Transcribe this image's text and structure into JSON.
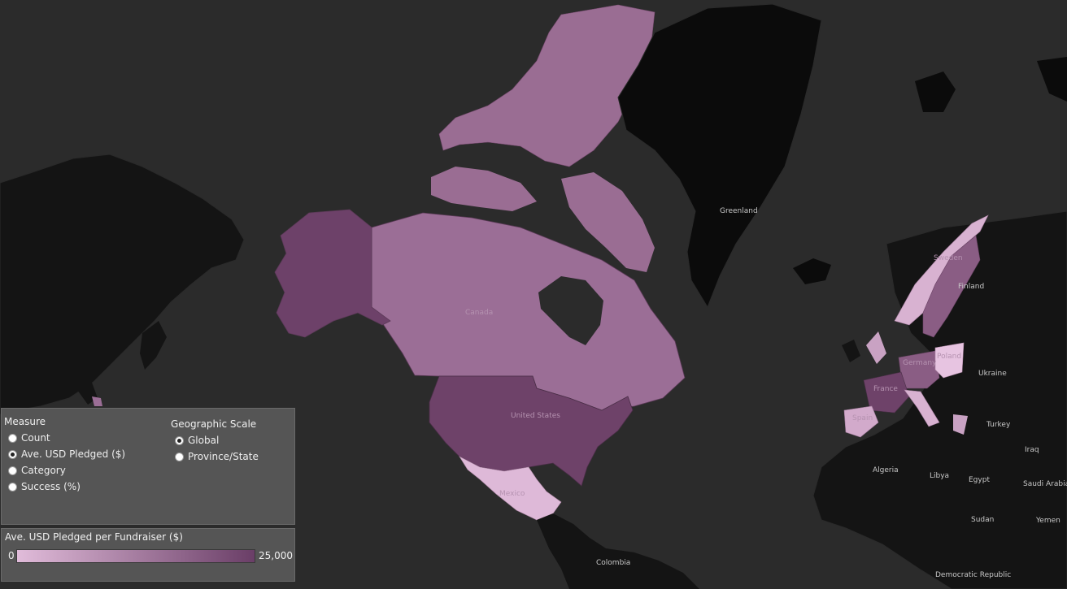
{
  "map": {
    "labels": {
      "greenland": "Greenland",
      "canada": "Canada",
      "united_states": "United States",
      "mexico": "Mexico",
      "colombia": "Colombia",
      "sweden": "Sweden",
      "finland": "Finland",
      "germany": "Germany",
      "poland": "Poland",
      "ukraine": "Ukraine",
      "france": "France",
      "spain": "Spain",
      "turkey": "Turkey",
      "iraq": "Iraq",
      "algeria": "Algeria",
      "libya": "Libya",
      "egypt": "Egypt",
      "saudi_arabia": "Saudi Arabia",
      "sudan": "Sudan",
      "yemen": "Yemen",
      "drc": "Democratic Republic"
    },
    "colors": {
      "ocean": "#2b2b2b",
      "land_no_data": "#111111",
      "scale_low": "#e1bcda",
      "scale_high": "#6a3e67"
    }
  },
  "controls": {
    "measure": {
      "title": "Measure",
      "options": [
        {
          "label": "Count",
          "selected": false
        },
        {
          "label": "Ave. USD Pledged ($)",
          "selected": true
        },
        {
          "label": "Category",
          "selected": false
        },
        {
          "label": "Success (%)",
          "selected": false
        }
      ]
    },
    "geo_scale": {
      "title": "Geographic Scale",
      "options": [
        {
          "label": "Global",
          "selected": true
        },
        {
          "label": "Province/State",
          "selected": false
        }
      ]
    }
  },
  "legend": {
    "title": "Ave. USD Pledged per Fundraiser  ($)",
    "min_label": "0",
    "max_label": "25,000"
  }
}
